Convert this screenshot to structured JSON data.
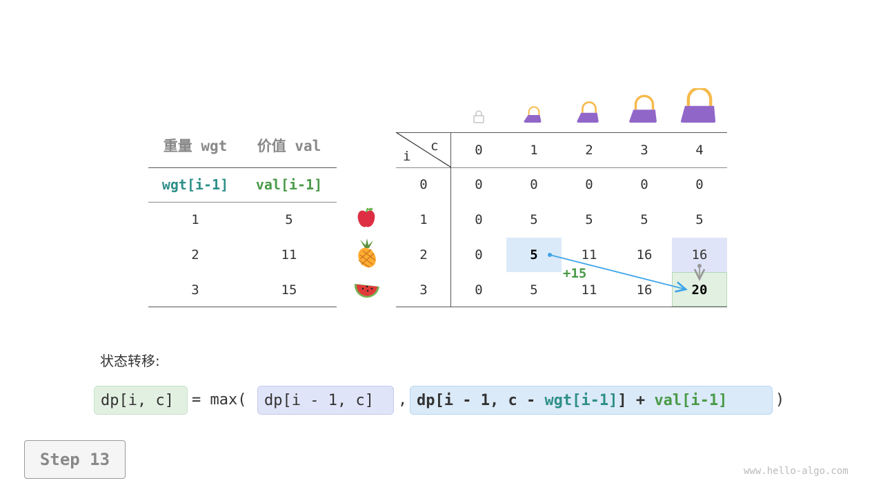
{
  "items_table": {
    "headers": [
      "重量 wgt",
      "价值 val"
    ],
    "subheaders": [
      "wgt[i-1]",
      "val[i-1]"
    ],
    "rows": [
      [
        "1",
        "5"
      ],
      [
        "2",
        "11"
      ],
      [
        "3",
        "15"
      ]
    ]
  },
  "item_icons": [
    "apple-icon",
    "pineapple-icon",
    "watermelon-icon"
  ],
  "bag_icons": [
    "empty-bag-icon",
    "bag-icon",
    "bag-icon",
    "bag-icon",
    "bag-icon"
  ],
  "dp_table": {
    "corner_i": "i",
    "corner_c": "c",
    "col_headers": [
      "0",
      "1",
      "2",
      "3",
      "4"
    ],
    "row_headers": [
      "0",
      "1",
      "2",
      "3"
    ],
    "rows": [
      [
        "0",
        "0",
        "0",
        "0",
        "0"
      ],
      [
        "0",
        "5",
        "5",
        "5",
        "5"
      ],
      [
        "0",
        "5",
        "11",
        "16",
        "16"
      ],
      [
        "0",
        "5",
        "11",
        "16",
        "20"
      ]
    ],
    "plus_label": "+15"
  },
  "transition_label": "状态转移:",
  "formula": {
    "lhs": "dp[i, c]",
    "eq": "= max(",
    "opt1": "dp[i - 1, c]",
    "comma": ",",
    "opt2_a": "dp[i - 1, c - ",
    "opt2_wgt": "wgt[i-1]",
    "opt2_b": "] + ",
    "opt2_val": "val[i-1]",
    "close": ")"
  },
  "step_label": "Step 13",
  "watermark": "www.hello-algo.com",
  "colors": {
    "blue_cell": "#dbeaf8",
    "purple_cell": "#e0e4f8",
    "green_cell": "#e2f0e2",
    "arrow": "#3ea4e8",
    "bag": "#9166c9",
    "handle": "#f6b94a"
  }
}
